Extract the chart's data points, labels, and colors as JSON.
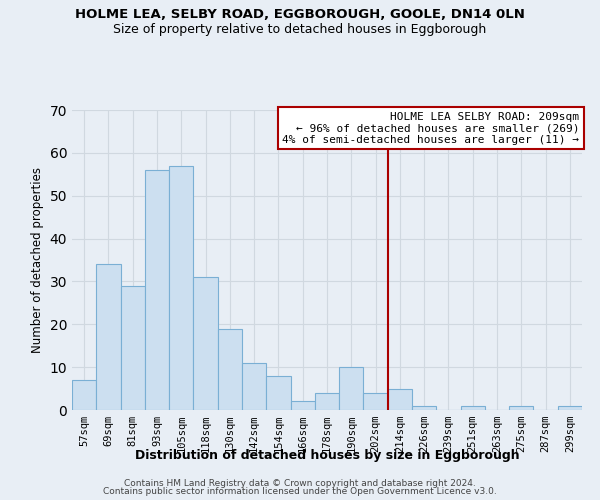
{
  "title": "HOLME LEA, SELBY ROAD, EGGBOROUGH, GOOLE, DN14 0LN",
  "subtitle": "Size of property relative to detached houses in Eggborough",
  "xlabel": "Distribution of detached houses by size in Eggborough",
  "ylabel": "Number of detached properties",
  "bar_labels": [
    "57sqm",
    "69sqm",
    "81sqm",
    "93sqm",
    "105sqm",
    "118sqm",
    "130sqm",
    "142sqm",
    "154sqm",
    "166sqm",
    "178sqm",
    "190sqm",
    "202sqm",
    "214sqm",
    "226sqm",
    "239sqm",
    "251sqm",
    "263sqm",
    "275sqm",
    "287sqm",
    "299sqm"
  ],
  "bar_heights": [
    7,
    34,
    29,
    56,
    57,
    31,
    19,
    11,
    8,
    2,
    4,
    10,
    4,
    5,
    1,
    0,
    1,
    0,
    1,
    0,
    1
  ],
  "bar_color": "#ccdff0",
  "bar_edge_color": "#7aafd4",
  "vline_color": "#aa0000",
  "vline_index": 13,
  "annotation_title": "HOLME LEA SELBY ROAD: 209sqm",
  "annotation_line1": "← 96% of detached houses are smaller (269)",
  "annotation_line2": "4% of semi-detached houses are larger (11) →",
  "annotation_box_color": "#ffffff",
  "annotation_border_color": "#aa0000",
  "ylim": [
    0,
    70
  ],
  "yticks": [
    0,
    10,
    20,
    30,
    40,
    50,
    60,
    70
  ],
  "footer1": "Contains HM Land Registry data © Crown copyright and database right 2024.",
  "footer2": "Contains public sector information licensed under the Open Government Licence v3.0.",
  "bg_color": "#e8eef5",
  "grid_color": "#d0d8e0"
}
